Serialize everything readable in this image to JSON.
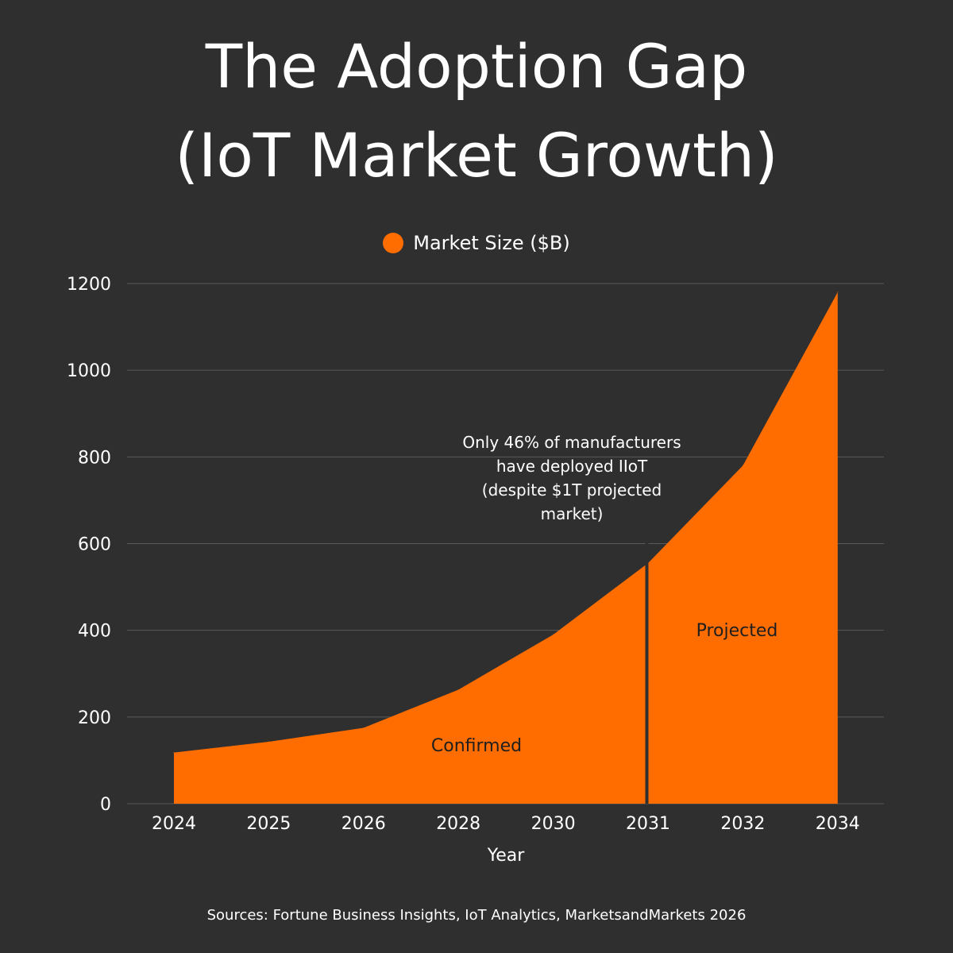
{
  "title": {
    "line1": "The Adoption Gap",
    "line2": "(IoT Market Growth)"
  },
  "chart_data": {
    "type": "area",
    "categories": [
      "2024",
      "2025",
      "2026",
      "2028",
      "2030",
      "2031",
      "2032",
      "2034"
    ],
    "series": [
      {
        "name": "Market Size ($B)",
        "values": [
          118,
          143,
          175,
          263,
          390,
          555,
          780,
          1180
        ],
        "color": "#ff6d00"
      }
    ],
    "xlabel": "Year",
    "ylabel": "",
    "ylim": [
      0,
      1200
    ],
    "yticks": [
      0,
      200,
      400,
      600,
      800,
      1000,
      1200
    ],
    "grid": true,
    "legend_position": "top-center",
    "divider_category": "2031",
    "region_labels": [
      "Confirmed",
      "Projected"
    ],
    "annotation": "Only 46% of manufacturers have deployed IIoT (despite $1T projected market)",
    "annotation_lines": [
      "Only 46% of manufacturers",
      "have deployed IIoT",
      "(despite $1T projected",
      "market)"
    ]
  },
  "legend": {
    "label": "Market Size ($B)"
  },
  "source": "Sources: Fortune Business Insights, IoT Analytics, MarketsandMarkets 2026",
  "colors": {
    "background": "#2f2f2f",
    "accent": "#ff6d00",
    "gridline": "#5a5a5a",
    "text": "#ffffff",
    "region_label_text": "#1f1f1f"
  }
}
